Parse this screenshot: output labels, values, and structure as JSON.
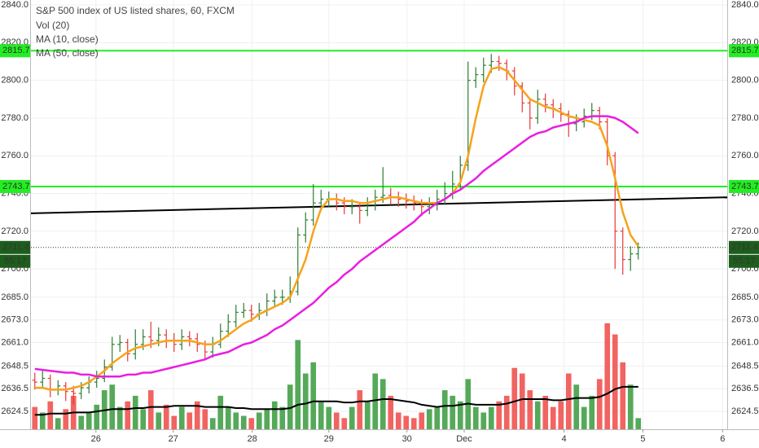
{
  "chart_data": {
    "type": "ohlc",
    "title": "S&P 500 index of US listed shares, 60, FXCM",
    "up_color": "#2e7d32",
    "down_color": "#e53935",
    "volume_up_color": "#43a047",
    "volume_down_color": "#ef5350",
    "grid": true,
    "xlim": [
      -0.5,
      89.5
    ],
    "xticks": [
      {
        "value": 7.9,
        "label": "26"
      },
      {
        "value": 17.9,
        "label": "27"
      },
      {
        "value": 28.1,
        "label": "28"
      },
      {
        "value": 38.0,
        "label": "29"
      },
      {
        "value": 48.1,
        "label": "30"
      },
      {
        "value": 55.5,
        "label": "Dec"
      },
      {
        "value": 68.4,
        "label": "4"
      },
      {
        "value": 78.6,
        "label": "5"
      },
      {
        "value": 88.9,
        "label": "6"
      }
    ],
    "ylim": [
      2615,
      2842.6
    ],
    "yticks": [
      {
        "value": 2840,
        "label": "2840.0"
      },
      {
        "value": 2820,
        "label": "2820.0"
      },
      {
        "value": 2800,
        "label": "2800.0"
      },
      {
        "value": 2780,
        "label": "2780.0"
      },
      {
        "value": 2760,
        "label": "2760.0"
      },
      {
        "value": 2740,
        "label": "2740.0"
      },
      {
        "value": 2720,
        "label": "2720.0"
      },
      {
        "value": 2700,
        "label": "2700.0"
      },
      {
        "value": 2685,
        "label": "2685.0"
      },
      {
        "value": 2673,
        "label": "2673.0"
      },
      {
        "value": 2661,
        "label": "2661.0"
      },
      {
        "value": 2648.5,
        "label": "2648.5"
      },
      {
        "value": 2636.5,
        "label": "2636.5"
      },
      {
        "value": 2624.5,
        "label": "2624.5"
      }
    ],
    "open": [
      2641,
      2640,
      2642,
      2636,
      2638,
      2635,
      2634,
      2637,
      2640,
      2642,
      2648,
      2660,
      2661,
      2655,
      2660,
      2664,
      2662,
      2665,
      2662,
      2660,
      2664,
      2663,
      2660,
      2656,
      2660,
      2667,
      2672,
      2677,
      2678,
      2676,
      2678,
      2683,
      2685,
      2685,
      2688,
      2718,
      2726,
      2735,
      2737,
      2737,
      2735,
      2733,
      2733,
      2731,
      2734,
      2738,
      2739,
      2738,
      2737,
      2736,
      2735,
      2733,
      2734,
      2737,
      2740,
      2745,
      2755,
      2800,
      2803,
      2808,
      2810,
      2809,
      2805,
      2797,
      2788,
      2780,
      2790,
      2787,
      2785,
      2782,
      2777,
      2778,
      2781,
      2784,
      2778,
      2760,
      2720,
      2705,
      2708
    ],
    "high": [
      2645,
      2646,
      2644,
      2641,
      2640,
      2638,
      2640,
      2643,
      2646,
      2652,
      2664,
      2665,
      2663,
      2668,
      2668,
      2672,
      2669,
      2668,
      2666,
      2668,
      2667,
      2666,
      2662,
      2664,
      2671,
      2676,
      2681,
      2682,
      2681,
      2682,
      2687,
      2689,
      2689,
      2696,
      2722,
      2730,
      2745,
      2742,
      2741,
      2740,
      2738,
      2737,
      2735,
      2738,
      2742,
      2754,
      2743,
      2741,
      2740,
      2739,
      2737,
      2738,
      2742,
      2746,
      2752,
      2760,
      2810,
      2807,
      2812,
      2814,
      2813,
      2811,
      2807,
      2799,
      2790,
      2795,
      2793,
      2790,
      2788,
      2784,
      2782,
      2785,
      2788,
      2786,
      2780,
      2762,
      2722,
      2712,
      2714
    ],
    "low": [
      2636,
      2637,
      2632,
      2633,
      2630,
      2628,
      2631,
      2634,
      2637,
      2640,
      2646,
      2656,
      2651,
      2652,
      2657,
      2658,
      2659,
      2658,
      2656,
      2657,
      2659,
      2656,
      2652,
      2653,
      2658,
      2664,
      2669,
      2674,
      2672,
      2673,
      2675,
      2680,
      2681,
      2682,
      2686,
      2714,
      2723,
      2731,
      2733,
      2731,
      2729,
      2729,
      2724,
      2728,
      2731,
      2735,
      2734,
      2733,
      2732,
      2731,
      2728,
      2729,
      2731,
      2734,
      2737,
      2742,
      2752,
      2796,
      2799,
      2804,
      2805,
      2800,
      2792,
      2783,
      2774,
      2777,
      2783,
      2780,
      2778,
      2770,
      2773,
      2775,
      2779,
      2774,
      2755,
      2700,
      2697,
      2699,
      2705
    ],
    "close": [
      2640,
      2642,
      2636,
      2638,
      2635,
      2634,
      2637,
      2640,
      2642,
      2648,
      2660,
      2661,
      2655,
      2660,
      2664,
      2662,
      2665,
      2662,
      2660,
      2664,
      2663,
      2660,
      2656,
      2660,
      2667,
      2672,
      2677,
      2678,
      2676,
      2678,
      2683,
      2685,
      2685,
      2688,
      2718,
      2726,
      2735,
      2737,
      2737,
      2735,
      2733,
      2733,
      2731,
      2734,
      2738,
      2739,
      2738,
      2737,
      2736,
      2735,
      2733,
      2734,
      2737,
      2740,
      2745,
      2755,
      2800,
      2803,
      2808,
      2810,
      2809,
      2805,
      2797,
      2788,
      2780,
      2790,
      2787,
      2785,
      2782,
      2777,
      2778,
      2781,
      2784,
      2778,
      2760,
      2720,
      2705,
      2708,
      2711.4
    ],
    "series": [
      {
        "name": "MA (10, close)",
        "color": "#f7a21b",
        "values": [
          2637,
          2637,
          2636,
          2636,
          2636,
          2637,
          2638,
          2640,
          2643,
          2646,
          2650,
          2653,
          2656,
          2658,
          2659,
          2660,
          2661,
          2662,
          2662,
          2662,
          2662,
          2661,
          2660,
          2660,
          2662,
          2665,
          2668,
          2671,
          2673,
          2676,
          2678,
          2680,
          2682,
          2685,
          2695,
          2705,
          2720,
          2732,
          2737,
          2737,
          2736,
          2736,
          2735,
          2735,
          2736,
          2737,
          2738,
          2738,
          2737,
          2736,
          2735,
          2735,
          2735,
          2737,
          2740,
          2746,
          2760,
          2780,
          2797,
          2806,
          2807,
          2805,
          2800,
          2795,
          2790,
          2788,
          2786,
          2785,
          2783,
          2781,
          2780,
          2779,
          2778,
          2776,
          2765,
          2748,
          2730,
          2718,
          2712
        ]
      },
      {
        "name": "MA (50, close)",
        "color": "#e91ee0",
        "values": [
          2647,
          2646.5,
          2646,
          2645.5,
          2645,
          2645,
          2644,
          2644,
          2643,
          2643,
          2643,
          2643,
          2644,
          2644,
          2645,
          2645,
          2646,
          2647,
          2648,
          2649,
          2650,
          2651,
          2652,
          2654,
          2655,
          2656,
          2658,
          2660,
          2661,
          2663,
          2665,
          2668,
          2670,
          2673,
          2676,
          2679,
          2682,
          2686,
          2690,
          2693,
          2697,
          2700,
          2704,
          2707,
          2710,
          2713,
          2716,
          2719,
          2722,
          2725,
          2729,
          2732,
          2735,
          2737,
          2740,
          2742,
          2745,
          2748,
          2752,
          2755,
          2758,
          2761,
          2764,
          2767,
          2770,
          2772,
          2773,
          2775,
          2776,
          2777,
          2778,
          2780,
          2781,
          2781,
          2781,
          2780,
          2778,
          2775,
          2772
        ]
      }
    ],
    "volume": {
      "name": "Vol (20)",
      "vlim": [
        0,
        100
      ],
      "ma_color": "#000000",
      "values": [
        20,
        15,
        25,
        10,
        18,
        30,
        12,
        15,
        22,
        35,
        40,
        20,
        25,
        30,
        18,
        35,
        15,
        22,
        12,
        20,
        15,
        25,
        18,
        10,
        30,
        20,
        15,
        12,
        10,
        15,
        18,
        25,
        20,
        40,
        80,
        50,
        60,
        25,
        20,
        15,
        10,
        20,
        35,
        25,
        50,
        45,
        30,
        15,
        12,
        10,
        15,
        18,
        20,
        35,
        30,
        25,
        45,
        20,
        15,
        20,
        25,
        30,
        55,
        50,
        35,
        25,
        30,
        20,
        25,
        50,
        40,
        20,
        30,
        45,
        95,
        85,
        60,
        40,
        10
      ],
      "ma": [
        13,
        13,
        14,
        14,
        14,
        15,
        15,
        15,
        16,
        17,
        18,
        18,
        18,
        19,
        19,
        20,
        20,
        20,
        21,
        21,
        21,
        21,
        20,
        20,
        20,
        20,
        19,
        19,
        18,
        18,
        18,
        18,
        18,
        19,
        22,
        23,
        25,
        25,
        25,
        25,
        24,
        24,
        25,
        25,
        26,
        27,
        27,
        26,
        25,
        24,
        22,
        21,
        20,
        21,
        21,
        22,
        23,
        22,
        22,
        22,
        22,
        23,
        25,
        27,
        27,
        27,
        27,
        26,
        26,
        27,
        28,
        28,
        28,
        29,
        32,
        36,
        38,
        38,
        38
      ]
    },
    "levels": [
      {
        "value": 2815.7,
        "color": "#22ee22"
      },
      {
        "value": 2743.7,
        "color": "#22ee22"
      }
    ],
    "trendline": {
      "x": [
        -0.5,
        89.5
      ],
      "y": [
        2729.5,
        2738
      ],
      "color": "#000000"
    },
    "last_price": 2711.4,
    "countdown": "55:17"
  }
}
